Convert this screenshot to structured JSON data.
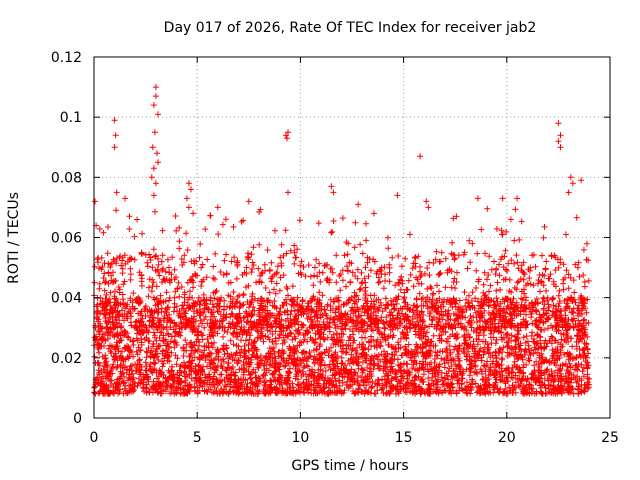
{
  "chart_data": {
    "type": "scatter",
    "title": "Day 017 of 2026, Rate Of TEC Index for receiver jab2",
    "xlabel": "GPS time / hours",
    "ylabel": "ROTI / TECUs",
    "xlim": [
      0,
      25
    ],
    "ylim": [
      0,
      0.12
    ],
    "x_ticks": [
      0,
      5,
      10,
      15,
      20,
      25
    ],
    "x_tick_labels": [
      "0",
      "5",
      "10",
      "15",
      "20",
      "25"
    ],
    "y_ticks": [
      0,
      0.02,
      0.04,
      0.06,
      0.08,
      0.1,
      0.12
    ],
    "y_tick_labels": [
      "0",
      "0.02",
      "0.04",
      "0.06",
      "0.08",
      "0.1",
      "0.12"
    ],
    "grid": true,
    "marker": "plus",
    "color": "#ff0000",
    "x_range_of_data": [
      0,
      24
    ],
    "bulk_band": [
      0.008,
      0.04
    ],
    "outliers": [
      {
        "x": 0.05,
        "y": 0.072
      },
      {
        "x": 0.1,
        "y": 0.064
      },
      {
        "x": 1.0,
        "y": 0.099
      },
      {
        "x": 1.05,
        "y": 0.094
      },
      {
        "x": 1.0,
        "y": 0.09
      },
      {
        "x": 1.1,
        "y": 0.075
      },
      {
        "x": 1.5,
        "y": 0.073
      },
      {
        "x": 2.8,
        "y": 0.08
      },
      {
        "x": 3.0,
        "y": 0.11
      },
      {
        "x": 3.0,
        "y": 0.107
      },
      {
        "x": 2.9,
        "y": 0.104
      },
      {
        "x": 3.1,
        "y": 0.101
      },
      {
        "x": 2.95,
        "y": 0.095
      },
      {
        "x": 2.85,
        "y": 0.09
      },
      {
        "x": 3.05,
        "y": 0.088
      },
      {
        "x": 3.1,
        "y": 0.085
      },
      {
        "x": 2.9,
        "y": 0.083
      },
      {
        "x": 3.0,
        "y": 0.078
      },
      {
        "x": 2.9,
        "y": 0.074
      },
      {
        "x": 4.6,
        "y": 0.078
      },
      {
        "x": 4.7,
        "y": 0.076
      },
      {
        "x": 4.5,
        "y": 0.073
      },
      {
        "x": 4.6,
        "y": 0.07
      },
      {
        "x": 4.8,
        "y": 0.068
      },
      {
        "x": 6.0,
        "y": 0.07
      },
      {
        "x": 7.5,
        "y": 0.072
      },
      {
        "x": 9.3,
        "y": 0.094
      },
      {
        "x": 9.4,
        "y": 0.095
      },
      {
        "x": 9.35,
        "y": 0.093
      },
      {
        "x": 9.4,
        "y": 0.075
      },
      {
        "x": 11.5,
        "y": 0.077
      },
      {
        "x": 11.6,
        "y": 0.075
      },
      {
        "x": 12.8,
        "y": 0.071
      },
      {
        "x": 14.7,
        "y": 0.074
      },
      {
        "x": 15.8,
        "y": 0.087
      },
      {
        "x": 16.2,
        "y": 0.07
      },
      {
        "x": 16.1,
        "y": 0.072
      },
      {
        "x": 18.6,
        "y": 0.073
      },
      {
        "x": 19.8,
        "y": 0.073
      },
      {
        "x": 20.5,
        "y": 0.073
      },
      {
        "x": 22.5,
        "y": 0.098
      },
      {
        "x": 22.6,
        "y": 0.094
      },
      {
        "x": 22.5,
        "y": 0.092
      },
      {
        "x": 22.6,
        "y": 0.09
      },
      {
        "x": 23.1,
        "y": 0.08
      },
      {
        "x": 23.2,
        "y": 0.078
      },
      {
        "x": 23.0,
        "y": 0.075
      },
      {
        "x": 23.6,
        "y": 0.079
      }
    ]
  }
}
